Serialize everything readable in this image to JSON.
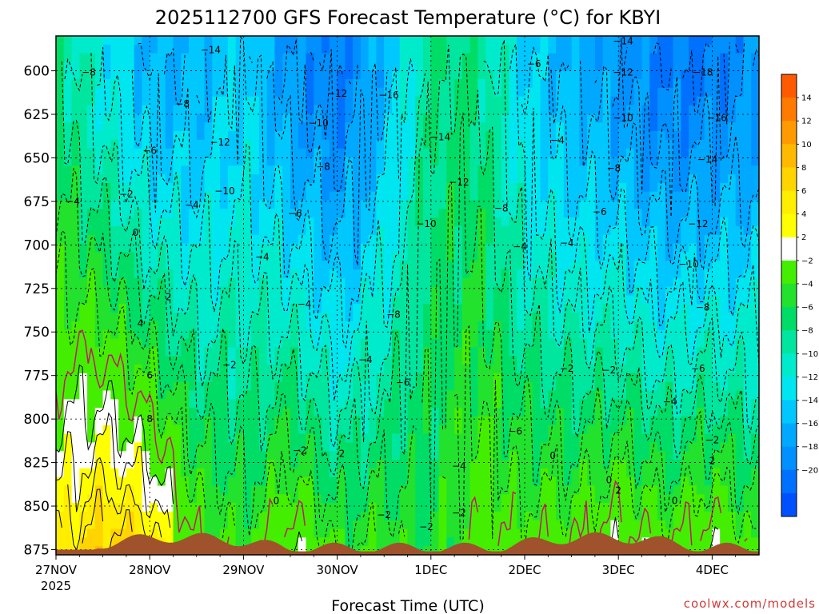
{
  "chart_data": {
    "type": "heatmap",
    "title": "2025112700 GFS Forecast Temperature (°C) for KBYI",
    "xlabel": "Forecast Time (UTC)",
    "ylabel": "",
    "credit": "coolwx.com/models",
    "x_ticks": [
      "27NOV",
      "28NOV",
      "29NOV",
      "30NOV",
      "1DEC",
      "2DEC",
      "3DEC",
      "4DEC"
    ],
    "x_year_label": "2025",
    "y_ticks": [
      600,
      625,
      650,
      675,
      700,
      725,
      750,
      775,
      800,
      825,
      850,
      875
    ],
    "ylim": [
      580,
      878
    ],
    "y_reversed": true,
    "x_range_days": [
      0,
      7.5
    ],
    "colorbar": {
      "levels": [
        -20,
        -18,
        -16,
        -14,
        -12,
        -10,
        -8,
        -6,
        -4,
        -2,
        2,
        4,
        6,
        8,
        10,
        12,
        14
      ],
      "labels": [
        "14",
        "12",
        "10",
        "8",
        "6",
        "4",
        "2",
        "−2",
        "−4",
        "−6",
        "−8",
        "−10",
        "−12",
        "−14",
        "−16",
        "−18",
        "−20"
      ],
      "colors": [
        "#ff5a00",
        "#ff7a00",
        "#ff9b00",
        "#ffb900",
        "#ffd400",
        "#ffee00",
        "#ffff00",
        "#ffffff",
        "#44ee00",
        "#22e22e",
        "#00dd66",
        "#00e69e",
        "#00ebcc",
        "#00e6f0",
        "#00c8ff",
        "#00a8ff",
        "#0090ff",
        "#0070ff",
        "#0050ff"
      ]
    },
    "temperature_profile": {
      "times_days": [
        0,
        0.5,
        1.0,
        1.5,
        2.0,
        2.5,
        3.0,
        3.5,
        4.0,
        4.5,
        5.0,
        5.5,
        6.0,
        6.5,
        7.0,
        7.5
      ],
      "surface_temp_c": [
        6,
        10,
        8,
        0,
        -2,
        2,
        -2,
        -2,
        -4,
        0,
        0,
        0,
        2,
        0,
        2,
        -2
      ],
      "temp_600hPa_c": [
        -6,
        -10,
        -14,
        -14,
        -12,
        -16,
        -18,
        -14,
        -6,
        -6,
        -12,
        -14,
        -16,
        -18,
        -18,
        -16
      ]
    },
    "contour_labels": [
      {
        "text": "−14",
        "t": 1.65,
        "p": 588
      },
      {
        "text": "−8",
        "t": 0.35,
        "p": 601
      },
      {
        "text": "−8",
        "t": 1.35,
        "p": 619
      },
      {
        "text": "−6",
        "t": 1.0,
        "p": 646
      },
      {
        "text": "−12",
        "t": 1.75,
        "p": 641
      },
      {
        "text": "−10",
        "t": 1.8,
        "p": 669
      },
      {
        "text": "−4",
        "t": 0.18,
        "p": 675
      },
      {
        "text": "−2",
        "t": 0.75,
        "p": 671
      },
      {
        "text": "−4",
        "t": 1.45,
        "p": 677
      },
      {
        "text": "−10",
        "t": 2.8,
        "p": 630
      },
      {
        "text": "−12",
        "t": 3.0,
        "p": 613
      },
      {
        "text": "−16",
        "t": 3.55,
        "p": 614
      },
      {
        "text": "−14",
        "t": 4.1,
        "p": 638
      },
      {
        "text": "−8",
        "t": 2.85,
        "p": 655
      },
      {
        "text": "−6",
        "t": 2.55,
        "p": 682
      },
      {
        "text": "−12",
        "t": 4.3,
        "p": 664
      },
      {
        "text": "−10",
        "t": 3.95,
        "p": 688
      },
      {
        "text": "−4",
        "t": 2.2,
        "p": 707
      },
      {
        "text": "−4",
        "t": 2.65,
        "p": 734
      },
      {
        "text": "−8",
        "t": 3.6,
        "p": 740
      },
      {
        "text": "−4",
        "t": 3.3,
        "p": 766
      },
      {
        "text": "−6",
        "t": 3.7,
        "p": 779
      },
      {
        "text": "−8",
        "t": 4.75,
        "p": 679
      },
      {
        "text": "−6",
        "t": 5.1,
        "p": 596
      },
      {
        "text": "−4",
        "t": 4.95,
        "p": 701
      },
      {
        "text": "−4",
        "t": 5.45,
        "p": 699
      },
      {
        "text": "−6",
        "t": 4.9,
        "p": 807
      },
      {
        "text": "−4",
        "t": 4.3,
        "p": 827
      },
      {
        "text": "−2",
        "t": 3.95,
        "p": 862
      },
      {
        "text": "−2",
        "t": 3.5,
        "p": 855
      },
      {
        "text": "−2",
        "t": 2.6,
        "p": 818
      },
      {
        "text": "−4",
        "t": 5.35,
        "p": 640
      },
      {
        "text": "−6",
        "t": 5.8,
        "p": 681
      },
      {
        "text": "−8",
        "t": 5.95,
        "p": 656
      },
      {
        "text": "−12",
        "t": 6.05,
        "p": 601
      },
      {
        "text": "−10",
        "t": 6.05,
        "p": 627
      },
      {
        "text": "−14",
        "t": 6.05,
        "p": 583
      },
      {
        "text": "−18",
        "t": 6.9,
        "p": 601
      },
      {
        "text": "−16",
        "t": 7.05,
        "p": 627
      },
      {
        "text": "−14",
        "t": 6.95,
        "p": 651
      },
      {
        "text": "−12",
        "t": 6.85,
        "p": 688
      },
      {
        "text": "−10",
        "t": 6.75,
        "p": 711
      },
      {
        "text": "−8",
        "t": 6.9,
        "p": 736
      },
      {
        "text": "−6",
        "t": 6.85,
        "p": 771
      },
      {
        "text": "−4",
        "t": 6.55,
        "p": 790
      },
      {
        "text": "−2",
        "t": 7.0,
        "p": 812
      },
      {
        "text": "−2",
        "t": 1.85,
        "p": 769
      },
      {
        "text": "−2",
        "t": 5.45,
        "p": 771
      },
      {
        "text": "−2",
        "t": 5.9,
        "p": 772
      },
      {
        "text": "0",
        "t": 0.85,
        "p": 693
      },
      {
        "text": "2",
        "t": 1.2,
        "p": 730
      },
      {
        "text": "4",
        "t": 0.9,
        "p": 745
      },
      {
        "text": "6",
        "t": 1.0,
        "p": 775
      },
      {
        "text": "8",
        "t": 1.0,
        "p": 800
      },
      {
        "text": "0",
        "t": 2.35,
        "p": 847
      },
      {
        "text": "2",
        "t": 3.05,
        "p": 820
      },
      {
        "text": "0",
        "t": 5.3,
        "p": 821
      },
      {
        "text": "0",
        "t": 5.9,
        "p": 835
      },
      {
        "text": "0",
        "t": 6.6,
        "p": 847
      },
      {
        "text": "2",
        "t": 6.0,
        "p": 841
      },
      {
        "text": "2",
        "t": 7.0,
        "p": 824
      },
      {
        "text": "−2",
        "t": 4.3,
        "p": 854
      }
    ]
  }
}
